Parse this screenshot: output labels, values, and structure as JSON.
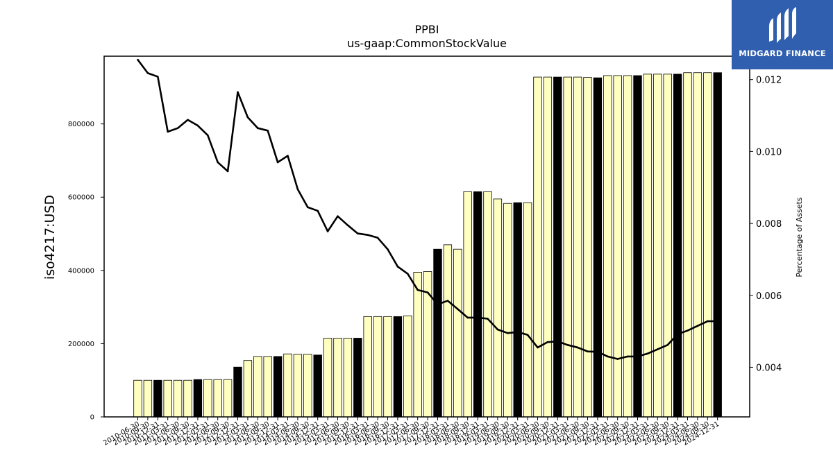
{
  "chart_data": {
    "type": "bar",
    "title": "PPBI",
    "subtitle": "us-gaap:CommonStockValue",
    "ylabel": "iso4217:USD",
    "y2label": "Percentage of Assets",
    "ylim": [
      0,
      985000
    ],
    "y2lim": [
      0.00262,
      0.01265
    ],
    "yticks": [
      0,
      200000,
      400000,
      600000,
      800000
    ],
    "y2ticks": [
      0.004,
      0.006,
      0.008,
      0.01,
      0.012
    ],
    "ytick_labels": [
      "0",
      "200000",
      "400000",
      "600000",
      "800000"
    ],
    "y2tick_labels": [
      "0.004",
      "0.006",
      "0.008",
      "0.010",
      "0.012"
    ],
    "grid": false,
    "bar_colors": {
      "quarter": "#ffffc0",
      "year_end": "#000000"
    },
    "line_color": "#000000",
    "categories": [
      "2010-06-30",
      "2010-09-30",
      "2010-12-31",
      "2011-03-31",
      "2011-06-30",
      "2011-09-30",
      "2011-12-31",
      "2012-03-31",
      "2012-06-30",
      "2012-09-30",
      "2012-12-31",
      "2013-03-31",
      "2013-06-30",
      "2013-09-30",
      "2013-12-31",
      "2014-03-31",
      "2014-06-30",
      "2014-09-30",
      "2014-12-31",
      "2015-03-31",
      "2015-06-30",
      "2015-09-30",
      "2015-12-31",
      "2016-03-31",
      "2016-06-30",
      "2016-09-30",
      "2016-12-31",
      "2017-03-31",
      "2017-06-30",
      "2017-09-30",
      "2017-12-31",
      "2018-03-31",
      "2018-06-30",
      "2018-09-30",
      "2018-12-31",
      "2019-03-31",
      "2019-06-30",
      "2019-09-30",
      "2019-12-31",
      "2020-03-31",
      "2020-06-30",
      "2020-09-30",
      "2020-12-31",
      "2021-03-31",
      "2021-06-30",
      "2021-09-30",
      "2021-12-31",
      "2022-03-31",
      "2022-06-30",
      "2022-09-30",
      "2022-12-31",
      "2023-03-31",
      "2023-06-30",
      "2023-09-30",
      "2023-12-31",
      "2024-03-31",
      "2024-06-30",
      "2024-09-30",
      "2024-12-31"
    ],
    "series": [
      {
        "type": "bar",
        "values": [
          100000,
          100000,
          100000,
          100000,
          100000,
          100000,
          102000,
          102000,
          102000,
          102000,
          136000,
          154000,
          165000,
          165000,
          165000,
          172000,
          171000,
          171000,
          169000,
          215000,
          215000,
          215000,
          215000,
          274000,
          274000,
          274000,
          274000,
          276000,
          395000,
          397000,
          458000,
          470000,
          458000,
          615000,
          615000,
          615000,
          595000,
          583000,
          585000,
          585000,
          928000,
          928000,
          928000,
          928000,
          928000,
          927000,
          926000,
          932000,
          932000,
          932000,
          932000,
          936000,
          936000,
          936000,
          936000,
          940000,
          940000,
          940000,
          940000
        ]
      },
      {
        "type": "line",
        "axis": "right",
        "values": [
          0.01255,
          0.01218,
          0.01208,
          0.01055,
          0.01065,
          0.01088,
          0.01072,
          0.01045,
          0.0097,
          0.00945,
          0.01165,
          0.01095,
          0.01065,
          0.01058,
          0.0097,
          0.00988,
          0.00895,
          0.00845,
          0.00835,
          0.00778,
          0.0082,
          0.00795,
          0.00772,
          0.00768,
          0.0076,
          0.00728,
          0.0068,
          0.0066,
          0.00615,
          0.00608,
          0.00575,
          0.00585,
          0.00562,
          0.00538,
          0.00538,
          0.00535,
          0.00505,
          0.00495,
          0.00498,
          0.0049,
          0.00455,
          0.0047,
          0.00472,
          0.00462,
          0.00455,
          0.00444,
          0.00443,
          0.0043,
          0.00423,
          0.0043,
          0.0043,
          0.00438,
          0.0045,
          0.00462,
          0.00492,
          0.00502,
          0.00515,
          0.00528,
          0.00528
        ]
      }
    ]
  },
  "logo": {
    "text": "MIDGARD FINANCE",
    "color": "#2f5fae"
  }
}
